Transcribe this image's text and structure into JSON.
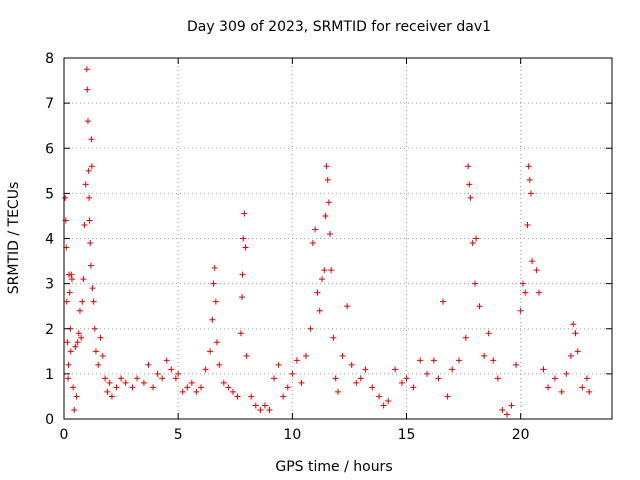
{
  "chart_data": {
    "type": "scatter",
    "title": "Day 309 of 2023, SRMTID for receiver dav1",
    "xlabel": "GPS time / hours",
    "ylabel": "SRMTID / TECUs",
    "xlim": [
      0,
      24.0
    ],
    "ylim": [
      0,
      8
    ],
    "x_ticks": [
      0,
      5,
      10,
      15,
      20
    ],
    "y_ticks": [
      0,
      1,
      2,
      3,
      4,
      5,
      6,
      7,
      8
    ],
    "grid": true,
    "marker": "+",
    "series_color": "#e00000",
    "series": [
      {
        "name": "dav1",
        "note": "representative sample of the dense point cloud",
        "points": [
          [
            0.05,
            4.9
          ],
          [
            0.08,
            4.4
          ],
          [
            0.1,
            3.8
          ],
          [
            0.12,
            2.6
          ],
          [
            0.15,
            1.7
          ],
          [
            0.18,
            0.9
          ],
          [
            0.2,
            1.2
          ],
          [
            0.22,
            3.2
          ],
          [
            0.25,
            2.8
          ],
          [
            0.28,
            2.0
          ],
          [
            0.3,
            1.5
          ],
          [
            0.32,
            3.2
          ],
          [
            0.35,
            3.1
          ],
          [
            0.4,
            0.7
          ],
          [
            0.45,
            0.2
          ],
          [
            0.5,
            1.6
          ],
          [
            0.55,
            0.5
          ],
          [
            0.6,
            1.7
          ],
          [
            0.65,
            1.9
          ],
          [
            0.7,
            2.4
          ],
          [
            0.75,
            1.8
          ],
          [
            0.8,
            2.6
          ],
          [
            0.85,
            3.1
          ],
          [
            0.9,
            4.3
          ],
          [
            0.95,
            5.2
          ],
          [
            1.0,
            7.75
          ],
          [
            1.02,
            7.3
          ],
          [
            1.05,
            6.6
          ],
          [
            1.08,
            5.5
          ],
          [
            1.1,
            4.9
          ],
          [
            1.12,
            4.4
          ],
          [
            1.15,
            3.9
          ],
          [
            1.18,
            3.4
          ],
          [
            1.2,
            6.2
          ],
          [
            1.22,
            5.6
          ],
          [
            1.25,
            2.9
          ],
          [
            1.3,
            2.6
          ],
          [
            1.35,
            2.0
          ],
          [
            1.4,
            1.5
          ],
          [
            1.5,
            1.2
          ],
          [
            1.6,
            1.8
          ],
          [
            1.7,
            1.4
          ],
          [
            1.8,
            0.9
          ],
          [
            1.9,
            0.6
          ],
          [
            2.0,
            0.8
          ],
          [
            2.1,
            0.5
          ],
          [
            2.3,
            0.7
          ],
          [
            2.5,
            0.9
          ],
          [
            2.7,
            0.8
          ],
          [
            3.0,
            0.7
          ],
          [
            3.2,
            0.9
          ],
          [
            3.5,
            0.8
          ],
          [
            3.7,
            1.2
          ],
          [
            3.9,
            0.7
          ],
          [
            4.1,
            1.0
          ],
          [
            4.3,
            0.9
          ],
          [
            4.5,
            1.3
          ],
          [
            4.7,
            1.1
          ],
          [
            4.9,
            0.9
          ],
          [
            5.0,
            1.0
          ],
          [
            5.2,
            0.6
          ],
          [
            5.4,
            0.7
          ],
          [
            5.6,
            0.8
          ],
          [
            5.8,
            0.6
          ],
          [
            6.0,
            0.7
          ],
          [
            6.2,
            1.1
          ],
          [
            6.4,
            1.5
          ],
          [
            6.5,
            2.2
          ],
          [
            6.55,
            3.0
          ],
          [
            6.6,
            3.35
          ],
          [
            6.65,
            2.6
          ],
          [
            6.7,
            1.7
          ],
          [
            6.8,
            1.2
          ],
          [
            7.0,
            0.8
          ],
          [
            7.2,
            0.7
          ],
          [
            7.4,
            0.6
          ],
          [
            7.6,
            0.5
          ],
          [
            7.75,
            1.9
          ],
          [
            7.8,
            2.7
          ],
          [
            7.82,
            3.2
          ],
          [
            7.85,
            4.0
          ],
          [
            7.9,
            4.55
          ],
          [
            7.95,
            3.8
          ],
          [
            8.0,
            1.4
          ],
          [
            8.2,
            0.5
          ],
          [
            8.4,
            0.3
          ],
          [
            8.6,
            0.2
          ],
          [
            8.8,
            0.3
          ],
          [
            9.0,
            0.2
          ],
          [
            9.2,
            0.9
          ],
          [
            9.4,
            1.2
          ],
          [
            9.6,
            0.5
          ],
          [
            9.8,
            0.7
          ],
          [
            10.0,
            1.0
          ],
          [
            10.2,
            1.3
          ],
          [
            10.4,
            0.8
          ],
          [
            10.6,
            1.4
          ],
          [
            10.8,
            2.0
          ],
          [
            10.9,
            3.9
          ],
          [
            11.0,
            4.2
          ],
          [
            11.1,
            2.8
          ],
          [
            11.2,
            2.4
          ],
          [
            11.3,
            3.1
          ],
          [
            11.4,
            3.3
          ],
          [
            11.45,
            4.5
          ],
          [
            11.5,
            5.6
          ],
          [
            11.55,
            5.3
          ],
          [
            11.6,
            4.8
          ],
          [
            11.65,
            4.1
          ],
          [
            11.7,
            3.3
          ],
          [
            11.8,
            1.8
          ],
          [
            11.9,
            0.9
          ],
          [
            12.0,
            0.6
          ],
          [
            12.2,
            1.4
          ],
          [
            12.4,
            2.5
          ],
          [
            12.6,
            1.2
          ],
          [
            12.8,
            0.8
          ],
          [
            13.0,
            0.9
          ],
          [
            13.2,
            1.1
          ],
          [
            13.5,
            0.7
          ],
          [
            13.8,
            0.5
          ],
          [
            14.0,
            0.3
          ],
          [
            14.2,
            0.4
          ],
          [
            14.5,
            1.1
          ],
          [
            14.8,
            0.8
          ],
          [
            15.0,
            0.9
          ],
          [
            15.3,
            0.7
          ],
          [
            15.6,
            1.3
          ],
          [
            15.9,
            1.0
          ],
          [
            16.2,
            1.3
          ],
          [
            16.4,
            0.9
          ],
          [
            16.6,
            2.6
          ],
          [
            16.8,
            0.5
          ],
          [
            17.0,
            1.1
          ],
          [
            17.3,
            1.3
          ],
          [
            17.6,
            1.8
          ],
          [
            17.7,
            5.6
          ],
          [
            17.75,
            5.2
          ],
          [
            17.8,
            4.9
          ],
          [
            17.9,
            3.9
          ],
          [
            18.0,
            3.0
          ],
          [
            18.05,
            4.0
          ],
          [
            18.2,
            2.5
          ],
          [
            18.4,
            1.4
          ],
          [
            18.6,
            1.9
          ],
          [
            18.8,
            1.3
          ],
          [
            19.0,
            0.9
          ],
          [
            19.2,
            0.2
          ],
          [
            19.4,
            0.1
          ],
          [
            19.6,
            0.3
          ],
          [
            19.8,
            1.2
          ],
          [
            20.0,
            2.4
          ],
          [
            20.1,
            3.0
          ],
          [
            20.2,
            2.8
          ],
          [
            20.3,
            4.3
          ],
          [
            20.35,
            5.6
          ],
          [
            20.4,
            5.3
          ],
          [
            20.45,
            5.0
          ],
          [
            20.5,
            3.5
          ],
          [
            20.7,
            3.3
          ],
          [
            20.8,
            2.8
          ],
          [
            21.0,
            1.1
          ],
          [
            21.2,
            0.7
          ],
          [
            21.5,
            0.9
          ],
          [
            21.8,
            0.6
          ],
          [
            22.0,
            1.0
          ],
          [
            22.2,
            1.4
          ],
          [
            22.3,
            2.1
          ],
          [
            22.4,
            1.9
          ],
          [
            22.5,
            1.5
          ],
          [
            22.7,
            0.7
          ],
          [
            22.9,
            0.9
          ],
          [
            23.0,
            0.6
          ]
        ]
      }
    ]
  }
}
